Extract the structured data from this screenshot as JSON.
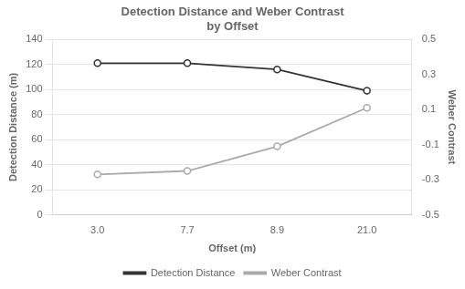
{
  "chart_data": {
    "type": "line",
    "title": "Detection Distance and Weber Contrast\nby Offset",
    "xlabel": "Offset (m)",
    "ylabel": "Detection Distance (m)",
    "y2label": "Weber Contrast",
    "categories": [
      "3.0",
      "7.7",
      "8.9",
      "21.0"
    ],
    "series": [
      {
        "name": "Detection Distance",
        "color": "#333333",
        "marker": "circle",
        "values": [
          121,
          121,
          116,
          99
        ]
      },
      {
        "name": "Weber Contrast",
        "color": "#aaaaaa",
        "marker": "circle",
        "axis": "y2",
        "values": [
          -0.27,
          -0.25,
          -0.11,
          0.11
        ]
      }
    ],
    "ylim": [
      0,
      140
    ],
    "yticks": [
      0,
      20,
      40,
      60,
      80,
      100,
      120,
      140
    ],
    "y2lim": [
      -0.5,
      0.5
    ],
    "y2ticks": [
      -0.5,
      -0.3,
      -0.1,
      0.1,
      0.3,
      0.5
    ],
    "grid": true,
    "legend": "bottom"
  }
}
